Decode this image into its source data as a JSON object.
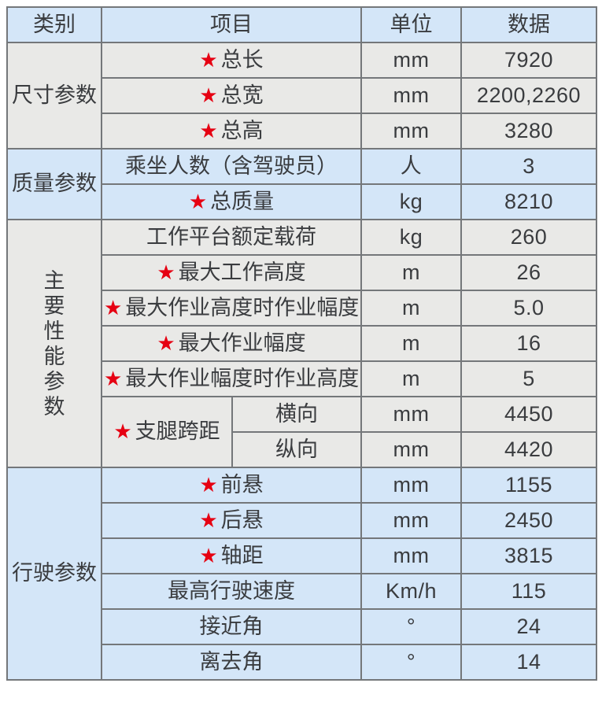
{
  "palette": {
    "header_and_blue_rows": "#d4e6f8",
    "gray_rows": "#e9e9e7",
    "border": "#74777a",
    "text": "#3a3c3f",
    "star_red": "#e60012",
    "page_background": "#ffffff"
  },
  "star_char": "★",
  "header": {
    "category": "类别",
    "item": "项目",
    "unit": "单位",
    "value": "数据"
  },
  "groups": [
    {
      "name": "尺寸参数",
      "vertical": false,
      "bg": "gray",
      "rows": [
        {
          "star": true,
          "item": "总长",
          "unit": "mm",
          "value": "7920"
        },
        {
          "star": true,
          "item": "总宽",
          "unit": "mm",
          "value": "2200,2260"
        },
        {
          "star": true,
          "item": "总高",
          "unit": "mm",
          "value": "3280"
        }
      ]
    },
    {
      "name": "质量参数",
      "vertical": false,
      "bg": "blue",
      "rows": [
        {
          "star": false,
          "item": "乘坐人数（含驾驶员）",
          "unit": "人",
          "value": "3"
        },
        {
          "star": true,
          "item": "总质量",
          "unit": "kg",
          "value": "8210"
        }
      ]
    },
    {
      "name": "主要性能参数",
      "vertical": true,
      "bg": "gray",
      "rows": [
        {
          "star": false,
          "item": "工作平台额定载荷",
          "unit": "kg",
          "value": "260"
        },
        {
          "star": true,
          "item": "最大工作高度",
          "unit": "m",
          "value": "26"
        },
        {
          "star": true,
          "item": "最大作业高度时作业幅度",
          "unit": "m",
          "value": "5.0"
        },
        {
          "star": true,
          "item": "最大作业幅度",
          "unit": "m",
          "value": "16"
        },
        {
          "star": true,
          "item": "最大作业幅度时作业高度",
          "unit": "m",
          "value": "5"
        },
        {
          "star": true,
          "item": "支腿跨距",
          "item_rowspan": 2,
          "sub": "横向",
          "unit": "mm",
          "value": "4450"
        },
        {
          "sub_only": true,
          "sub": "纵向",
          "unit": "mm",
          "value": "4420"
        }
      ]
    },
    {
      "name": "行驶参数",
      "vertical": false,
      "bg": "blue",
      "rows": [
        {
          "star": true,
          "item": "前悬",
          "unit": "mm",
          "value": "1155"
        },
        {
          "star": true,
          "item": "后悬",
          "unit": "mm",
          "value": "2450"
        },
        {
          "star": true,
          "item": "轴距",
          "unit": "mm",
          "value": "3815"
        },
        {
          "star": false,
          "item": "最高行驶速度",
          "unit": "Km/h",
          "value": "115"
        },
        {
          "star": false,
          "item": "接近角",
          "unit": "°",
          "value": "24"
        },
        {
          "star": false,
          "item": "离去角",
          "unit": "°",
          "value": "14"
        }
      ]
    }
  ]
}
